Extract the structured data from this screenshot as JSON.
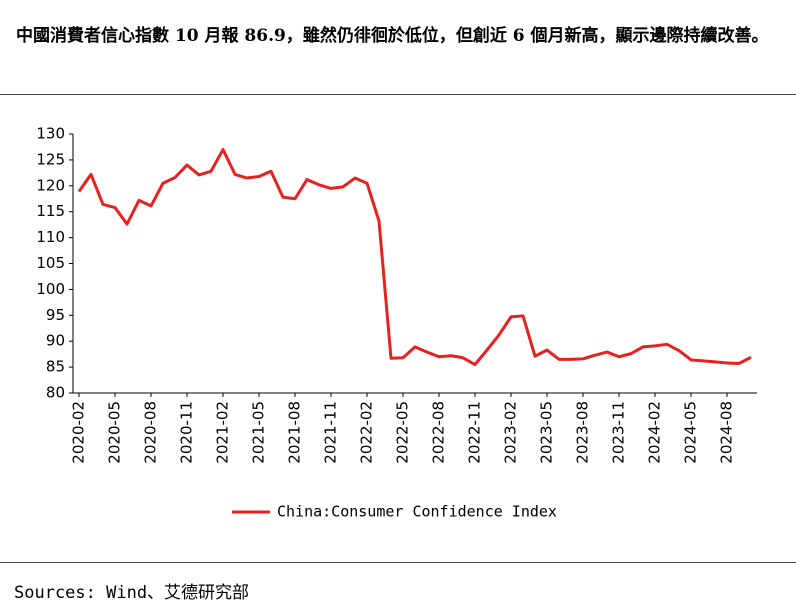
{
  "header": {
    "title": "中國消費者信心指數 10 月報 86.9，雖然仍徘徊於低位，但創近 6 個月新高，顯示邊際持續改善。"
  },
  "chart_data": {
    "type": "line",
    "categories": [
      "2020-02",
      null,
      null,
      "2020-05",
      null,
      null,
      "2020-08",
      null,
      null,
      "2020-11",
      null,
      null,
      "2021-02",
      null,
      null,
      "2021-05",
      null,
      null,
      "2021-08",
      null,
      null,
      "2021-11",
      null,
      null,
      "2022-02",
      null,
      null,
      "2022-05",
      null,
      null,
      "2022-08",
      null,
      null,
      "2022-11",
      null,
      null,
      "2023-02",
      null,
      null,
      "2023-05",
      null,
      null,
      "2023-08",
      null,
      null,
      "2023-11",
      null,
      null,
      "2024-02",
      null,
      null,
      "2024-05",
      null,
      null,
      "2024-08",
      null,
      null
    ],
    "series": [
      {
        "name": "China:Consumer Confidence Index",
        "color": "#e8201e",
        "values": [
          118.9,
          122.2,
          116.4,
          115.8,
          112.6,
          117.2,
          116.1,
          120.5,
          121.6,
          124.0,
          122.1,
          122.8,
          127.0,
          122.2,
          121.5,
          121.8,
          122.8,
          117.8,
          117.5,
          121.2,
          120.2,
          119.5,
          119.8,
          121.5,
          120.5,
          113.2,
          86.7,
          86.8,
          88.9,
          87.9,
          87.0,
          87.2,
          86.8,
          85.5,
          88.3,
          91.2,
          94.7,
          94.9,
          87.1,
          88.3,
          86.5,
          86.5,
          86.6,
          87.3,
          87.9,
          87.0,
          87.6,
          88.9,
          89.1,
          89.4,
          88.2,
          86.4,
          86.2,
          86.0,
          85.8,
          85.7,
          86.9
        ]
      }
    ],
    "ylim": [
      80,
      130
    ],
    "yticks": [
      80,
      85,
      90,
      95,
      100,
      105,
      110,
      115,
      120,
      125,
      130
    ],
    "grid": false
  },
  "footer": {
    "source": "Sources: Wind、艾德研究部"
  }
}
